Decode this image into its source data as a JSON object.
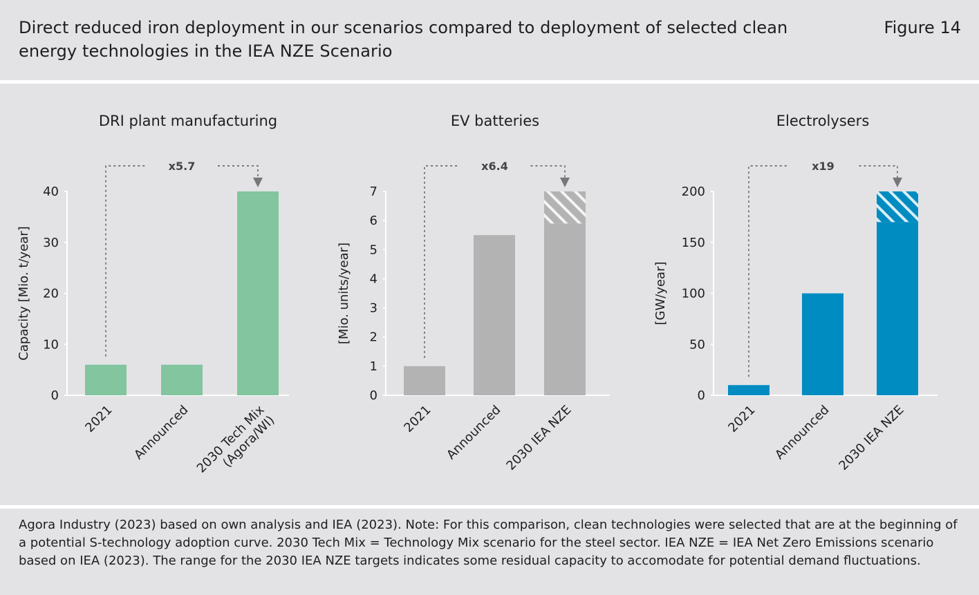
{
  "header": {
    "title": "Direct reduced iron deployment in our scenarios compared to deployment of selected clean energy technologies in the IEA NZE Scenario",
    "figure_label": "Figure 14"
  },
  "footnote": "Agora Industry (2023) based on own analysis and IEA (2023). Note: For this comparison, clean technologies were selected that are at the beginning of a potential S-technology adoption curve. 2030 Tech Mix = Technology Mix scenario for the steel sector. IEA NZE = IEA Net Zero Emissions scenario based on IEA (2023). The range for the 2030 IEA NZE targets indicates some residual capacity to accomodate for potential demand fluctuations.",
  "chart_data": [
    {
      "type": "bar",
      "title": "DRI plant manufacturing",
      "ylabel": "Capacity [Mio. t/year]",
      "ylim": [
        0,
        40
      ],
      "yticks": [
        0,
        10,
        20,
        30,
        40
      ],
      "categories": [
        "2021",
        "Announced",
        "2030 Tech Mix\n(Agora/WI)"
      ],
      "values": [
        6,
        6,
        40
      ],
      "range_low": [
        null,
        null,
        null
      ],
      "color": "#82c59e",
      "multiplier": "x5.7",
      "grid": false
    },
    {
      "type": "bar",
      "title": "EV batteries",
      "ylabel": "[Mio. units/year]",
      "ylim": [
        0,
        7
      ],
      "yticks": [
        0,
        1,
        2,
        3,
        4,
        5,
        6,
        7
      ],
      "categories": [
        "2021",
        "Announced",
        "2030 IEA NZE"
      ],
      "values": [
        1,
        5.5,
        7
      ],
      "range_low": [
        null,
        null,
        5.9
      ],
      "color": "#b3b3b3",
      "multiplier": "x6.4",
      "grid": false
    },
    {
      "type": "bar",
      "title": "Electrolysers",
      "ylabel": "[GW/year]",
      "ylim": [
        0,
        200
      ],
      "yticks": [
        0,
        50,
        100,
        150,
        200
      ],
      "categories": [
        "2021",
        "Announced",
        "2030 IEA NZE"
      ],
      "values": [
        10,
        100,
        200
      ],
      "range_low": [
        null,
        null,
        170
      ],
      "color": "#008cc1",
      "multiplier": "x19",
      "grid": false
    }
  ]
}
